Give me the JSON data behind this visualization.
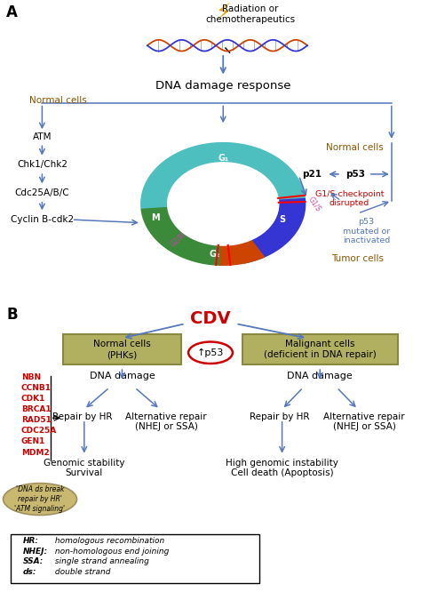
{
  "title_A": "A",
  "title_B": "B",
  "radiation_text": "Radiation or\nchemotherapeutics",
  "dna_damage_text": "DNA damage response",
  "normal_cells_left": "Normal cells",
  "normal_cells_right": "Normal cells",
  "tumor_cells": "Tumor cells",
  "atm": "ATM",
  "chk": "Chk1/Chk2",
  "cdc": "Cdc25A/B/C",
  "cyclin": "Cyclin B-cdk2",
  "p21": "p21",
  "p53_label": "p53",
  "g1s_disrupted": "G1/S checkpoint\ndisrupted",
  "p53_mutated": "p53\nmutated or\ninactivated",
  "g1_color": "#4dbfbf",
  "s_color": "#3535d4",
  "g2_color": "#3a8a3a",
  "m_color": "#cc4400",
  "cdv_text": "CDV",
  "normal_cells_box": "Normal cells\n(PHKs)",
  "malignant_box": "Malignant cells\n(deficient in DNA repair)",
  "p53_circle": "↑p53",
  "dna_damage": "DNA damage",
  "repair_hr": "Repair by HR",
  "alt_repair": "Alternative repair\n(NHEJ or SSA)",
  "repair_hr2": "Repair by HR",
  "alt_repair2": "Alternative repair\n(NHEJ or SSA)",
  "genomic_stability": "Genomic stability\nSurvival",
  "high_genomic": "High genomic instability\nCell death (Apoptosis)",
  "red_genes": [
    "NBN",
    "CCNB1",
    "CDK1",
    "BRCA1",
    "RAD51",
    "CDC25A",
    "GEN1",
    "MDM2"
  ],
  "circle_text": "'DNA ds break\nrepair by HR'\n'ATM signaling'",
  "arrow_color": "#5577bb",
  "box_facecolor": "#b0b060",
  "box_edgecolor": "#888840",
  "red_color": "#cc0000",
  "tan_color": "#c8b870",
  "brown_color": "#8b5500",
  "g1s_label_color": "#cc44aa",
  "g2m_label_color": "#cc44aa"
}
